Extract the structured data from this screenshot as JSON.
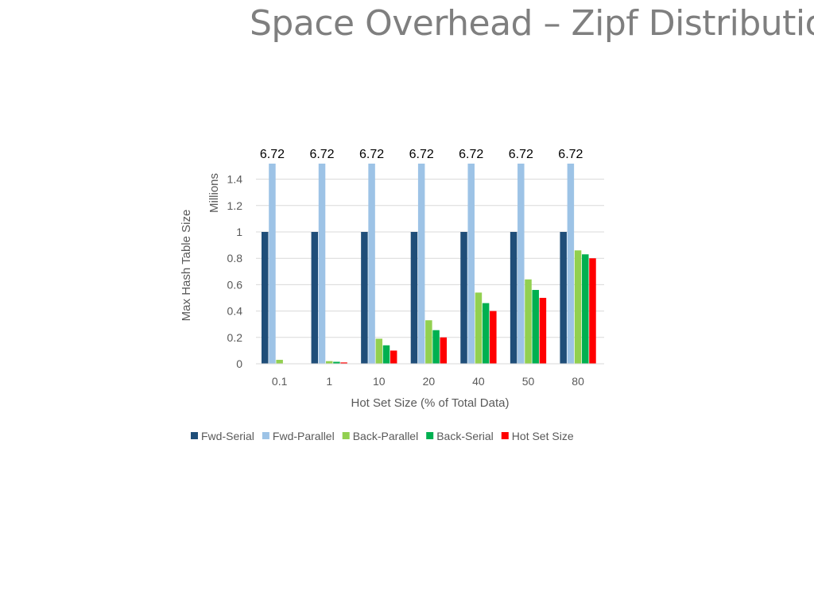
{
  "slide": {
    "title": "Space Overhead – Zipf Distribution"
  },
  "chart_data": {
    "type": "bar",
    "title": "",
    "xlabel": "Hot Set Size (% of Total Data)",
    "ylabel": "Max Hash Table Size",
    "yunit_label": "Millions",
    "categories": [
      "0.1",
      "1",
      "10",
      "20",
      "40",
      "50",
      "80"
    ],
    "ylim": [
      0,
      1.5
    ],
    "yticks": [
      0,
      0.2,
      0.4,
      0.6,
      0.8,
      1,
      1.2,
      1.4
    ],
    "ytick_labels": [
      "0",
      "0.2",
      "0.4",
      "0.6",
      "0.8",
      "1",
      "1.2",
      "1.4"
    ],
    "grid": true,
    "legend_position": "bottom",
    "series": [
      {
        "name": "Fwd-Serial",
        "color": "#1f4e79",
        "values": [
          1,
          1,
          1,
          1,
          1,
          1,
          1
        ]
      },
      {
        "name": "Fwd-Parallel",
        "color": "#9dc3e6",
        "values": [
          6.72,
          6.72,
          6.72,
          6.72,
          6.72,
          6.72,
          6.72
        ]
      },
      {
        "name": "Back-Parallel",
        "color": "#92d050",
        "values": [
          0.03,
          0.02,
          0.19,
          0.33,
          0.54,
          0.64,
          0.86
        ]
      },
      {
        "name": "Back-Serial",
        "color": "#00b050",
        "values": [
          0,
          0.015,
          0.14,
          0.255,
          0.46,
          0.56,
          0.83
        ]
      },
      {
        "name": "Hot Set Size",
        "color": "#ff0000",
        "values": [
          0.001,
          0.01,
          0.1,
          0.2,
          0.4,
          0.5,
          0.8
        ]
      }
    ],
    "annotations": [
      "6.72",
      "6.72",
      "6.72",
      "6.72",
      "6.72",
      "6.72",
      "6.72"
    ]
  }
}
